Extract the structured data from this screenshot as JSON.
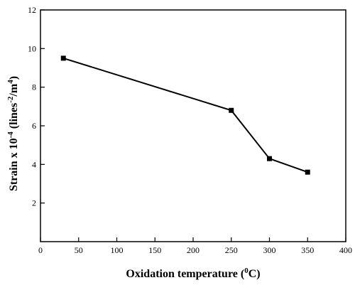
{
  "chart_data": {
    "type": "line",
    "title": "",
    "xlabel": {
      "prefix": "Oxidation temperature (",
      "sup": "0",
      "suffix": "C)"
    },
    "ylabel": {
      "a": "Strain x 10",
      "a_sup": "-4",
      "b": " (lines",
      "b_sup": "-2",
      "c": "/m",
      "c_sup": "4",
      "d": ")"
    },
    "xlim": [
      0,
      400
    ],
    "ylim": [
      0,
      12
    ],
    "xticks": [
      0,
      50,
      100,
      150,
      200,
      250,
      300,
      350,
      400
    ],
    "yticks": [
      2,
      4,
      6,
      8,
      10,
      12
    ],
    "grid": false,
    "legend": "none",
    "marker": "square",
    "line_color": "#000000",
    "series": [
      {
        "x": [
          30,
          250,
          300,
          350
        ],
        "y": [
          9.5,
          6.8,
          4.3,
          3.6
        ]
      }
    ]
  }
}
